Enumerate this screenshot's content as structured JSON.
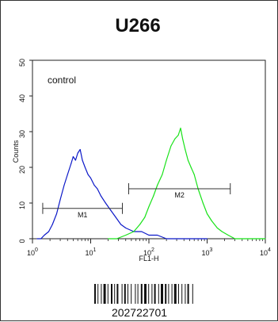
{
  "chart_data": {
    "type": "line",
    "title": "U266",
    "xlabel": "FL1-H",
    "ylabel": "Counts",
    "x_scale": "log",
    "xlim": [
      1,
      10000
    ],
    "ylim": [
      0,
      50
    ],
    "x_ticks": [
      {
        "value": 1,
        "base": "10",
        "exp": "0"
      },
      {
        "value": 10,
        "base": "10",
        "exp": "1"
      },
      {
        "value": 100,
        "base": "10",
        "exp": "2"
      },
      {
        "value": 1000,
        "base": "10",
        "exp": "3"
      },
      {
        "value": 10000,
        "base": "10",
        "exp": "4"
      }
    ],
    "y_ticks": [
      0,
      10,
      20,
      30,
      40,
      50
    ],
    "annotation": "control",
    "series": [
      {
        "color": "#0b18c8",
        "points": [
          [
            1.2,
            0
          ],
          [
            1.4,
            0
          ],
          [
            1.6,
            1
          ],
          [
            1.9,
            2
          ],
          [
            2.2,
            4
          ],
          [
            2.6,
            7
          ],
          [
            3.0,
            11
          ],
          [
            3.5,
            15
          ],
          [
            4.0,
            18
          ],
          [
            4.6,
            21
          ],
          [
            5.0,
            23
          ],
          [
            5.5,
            22
          ],
          [
            6.0,
            24
          ],
          [
            6.6,
            25
          ],
          [
            7.2,
            22
          ],
          [
            8.0,
            20
          ],
          [
            9.0,
            18
          ],
          [
            10.0,
            17
          ],
          [
            11.5,
            15
          ],
          [
            13.0,
            14
          ],
          [
            15.0,
            12
          ],
          [
            18.0,
            10
          ],
          [
            22.0,
            8
          ],
          [
            27.0,
            6
          ],
          [
            33.0,
            4
          ],
          [
            40.0,
            3
          ],
          [
            55.0,
            2
          ],
          [
            75.0,
            2
          ],
          [
            100.0,
            1
          ],
          [
            140.0,
            1
          ],
          [
            200.0,
            0
          ],
          [
            300.0,
            0
          ],
          [
            600.0,
            0
          ],
          [
            1000.0,
            0
          ]
        ]
      },
      {
        "color": "#18e218",
        "points": [
          [
            20.0,
            0
          ],
          [
            28.0,
            0
          ],
          [
            40.0,
            1
          ],
          [
            55.0,
            2
          ],
          [
            70.0,
            4
          ],
          [
            85.0,
            6
          ],
          [
            100.0,
            9
          ],
          [
            120.0,
            12
          ],
          [
            140.0,
            15
          ],
          [
            170.0,
            18
          ],
          [
            200.0,
            22
          ],
          [
            240.0,
            26
          ],
          [
            280.0,
            28
          ],
          [
            320.0,
            29
          ],
          [
            350.0,
            31
          ],
          [
            380.0,
            28
          ],
          [
            420.0,
            25
          ],
          [
            470.0,
            22
          ],
          [
            530.0,
            20
          ],
          [
            600.0,
            18
          ],
          [
            700.0,
            14
          ],
          [
            850.0,
            10
          ],
          [
            1000.0,
            7
          ],
          [
            1200.0,
            5
          ],
          [
            1500.0,
            3
          ],
          [
            1800.0,
            2
          ],
          [
            2300.0,
            1
          ],
          [
            3000.0,
            0
          ],
          [
            5000.0,
            0
          ],
          [
            10000.0,
            0
          ]
        ]
      }
    ],
    "markers": [
      {
        "label": "M1",
        "x1": 1.5,
        "x2": 35,
        "y": 8.5
      },
      {
        "label": "M2",
        "x1": 45,
        "x2": 2500,
        "y": 14
      }
    ]
  },
  "barcode": {
    "number": "202722701"
  }
}
